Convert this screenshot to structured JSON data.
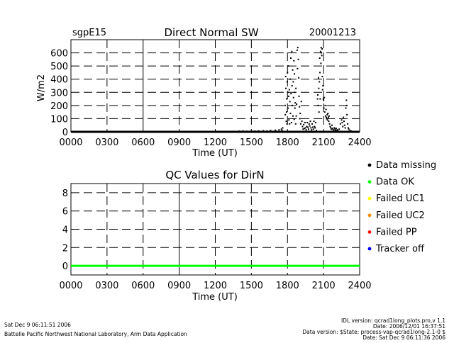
{
  "site": "sgpE15",
  "date": "20001213",
  "footer": {
    "left_line1": "Sat Dec  9 06:11:51 2006",
    "left_line2": "Battelle Pacific Northwest National Laboratory, Arm Data Application",
    "right_line1": "IDL version: qcrad1long_plots.pro,v 1.1",
    "right_line2": "Date: 2006/12/01 16:37:51",
    "right_line3": "Data version: $State: process-vap-qcrad1long-2.1-0 $",
    "right_line4": "Date: Sat Dec  9 06:11:36 2006"
  },
  "legend": [
    {
      "label": "Data missing",
      "color": "#000000"
    },
    {
      "label": "Data OK",
      "color": "#00ff00"
    },
    {
      "label": "Failed UC1",
      "color": "#ffff00"
    },
    {
      "label": "Failed UC2",
      "color": "#ff8c00"
    },
    {
      "label": "Failed PP",
      "color": "#ff0000"
    },
    {
      "label": "Tracker off",
      "color": "#0000ff"
    }
  ],
  "chart_data": [
    {
      "type": "scatter",
      "title": "Direct Normal SW",
      "xlabel": "Time (UT)",
      "ylabel": "W/m2",
      "xlim": [
        0,
        2400
      ],
      "ylim": [
        0,
        700
      ],
      "xticks": [
        "0000",
        "0300",
        "0600",
        "0900",
        "1200",
        "1500",
        "1800",
        "2100",
        "2400"
      ],
      "yticks": [
        "0",
        "100",
        "200",
        "300",
        "400",
        "500",
        "600"
      ],
      "grid": true,
      "baseline": {
        "y": 0,
        "from": 0,
        "to": 2400
      },
      "points": [
        [
          1400,
          5
        ],
        [
          1430,
          6
        ],
        [
          1460,
          4
        ],
        [
          1500,
          7
        ],
        [
          1530,
          5
        ],
        [
          1560,
          6
        ],
        [
          1600,
          8
        ],
        [
          1630,
          6
        ],
        [
          1660,
          10
        ],
        [
          1700,
          12
        ],
        [
          1730,
          15
        ],
        [
          1750,
          20
        ],
        [
          1755,
          10
        ],
        [
          1760,
          30
        ],
        [
          1780,
          200
        ],
        [
          1782,
          130
        ],
        [
          1785,
          420
        ],
        [
          1787,
          330
        ],
        [
          1790,
          80
        ],
        [
          1792,
          150
        ],
        [
          1794,
          250
        ],
        [
          1796,
          60
        ],
        [
          1798,
          380
        ],
        [
          1800,
          450
        ],
        [
          1803,
          300
        ],
        [
          1805,
          180
        ],
        [
          1808,
          500
        ],
        [
          1810,
          270
        ],
        [
          1812,
          90
        ],
        [
          1815,
          320
        ],
        [
          1818,
          60
        ],
        [
          1820,
          230
        ],
        [
          1823,
          400
        ],
        [
          1825,
          140
        ],
        [
          1828,
          560
        ],
        [
          1830,
          290
        ],
        [
          1833,
          70
        ],
        [
          1836,
          610
        ],
        [
          1838,
          350
        ],
        [
          1840,
          200
        ],
        [
          1843,
          470
        ],
        [
          1846,
          120
        ],
        [
          1848,
          380
        ],
        [
          1850,
          260
        ],
        [
          1853,
          540
        ],
        [
          1856,
          95
        ],
        [
          1858,
          440
        ],
        [
          1860,
          300
        ],
        [
          1862,
          180
        ],
        [
          1865,
          220
        ],
        [
          1868,
          60
        ],
        [
          1870,
          330
        ],
        [
          1873,
          120
        ],
        [
          1876,
          210
        ],
        [
          1880,
          620
        ],
        [
          1883,
          480
        ],
        [
          1886,
          640
        ],
        [
          1890,
          550
        ],
        [
          1893,
          410
        ],
        [
          1896,
          270
        ],
        [
          1900,
          190
        ],
        [
          1903,
          100
        ],
        [
          1906,
          140
        ],
        [
          1910,
          60
        ],
        [
          1915,
          230
        ],
        [
          1920,
          80
        ],
        [
          1925,
          40
        ],
        [
          1930,
          20
        ],
        [
          1935,
          55
        ],
        [
          1940,
          25
        ],
        [
          1945,
          70
        ],
        [
          1950,
          30
        ],
        [
          1955,
          15
        ],
        [
          1960,
          40
        ],
        [
          1965,
          70
        ],
        [
          1970,
          35
        ],
        [
          1975,
          20
        ],
        [
          1980,
          60
        ],
        [
          1985,
          45
        ],
        [
          1990,
          80
        ],
        [
          1995,
          30
        ],
        [
          2000,
          15
        ],
        [
          2005,
          60
        ],
        [
          2010,
          35
        ],
        [
          2015,
          20
        ],
        [
          2020,
          80
        ],
        [
          2025,
          40
        ],
        [
          2030,
          30
        ],
        [
          2035,
          70
        ],
        [
          2040,
          10
        ],
        [
          2050,
          250
        ],
        [
          2052,
          280
        ],
        [
          2055,
          200
        ],
        [
          2058,
          410
        ],
        [
          2060,
          330
        ],
        [
          2062,
          150
        ],
        [
          2065,
          380
        ],
        [
          2068,
          560
        ],
        [
          2070,
          450
        ],
        [
          2072,
          250
        ],
        [
          2075,
          610
        ],
        [
          2078,
          520
        ],
        [
          2080,
          640
        ],
        [
          2082,
          600
        ],
        [
          2085,
          580
        ],
        [
          2088,
          630
        ],
        [
          2090,
          420
        ],
        [
          2092,
          320
        ],
        [
          2095,
          350
        ],
        [
          2098,
          250
        ],
        [
          2100,
          240
        ],
        [
          2103,
          180
        ],
        [
          2106,
          260
        ],
        [
          2110,
          150
        ],
        [
          2113,
          200
        ],
        [
          2116,
          120
        ],
        [
          2120,
          170
        ],
        [
          2123,
          110
        ],
        [
          2126,
          100
        ],
        [
          2130,
          130
        ],
        [
          2133,
          90
        ],
        [
          2136,
          140
        ],
        [
          2140,
          110
        ],
        [
          2143,
          80
        ],
        [
          2146,
          120
        ],
        [
          2150,
          60
        ],
        [
          2155,
          40
        ],
        [
          2160,
          30
        ],
        [
          2165,
          20
        ],
        [
          2170,
          50
        ],
        [
          2175,
          25
        ],
        [
          2180,
          15
        ],
        [
          2185,
          10
        ],
        [
          2190,
          30
        ],
        [
          2195,
          20
        ],
        [
          2200,
          10
        ],
        [
          2205,
          25
        ],
        [
          2210,
          8
        ],
        [
          2215,
          15
        ],
        [
          2220,
          5
        ],
        [
          2230,
          20
        ],
        [
          2240,
          60
        ],
        [
          2250,
          90
        ],
        [
          2255,
          70
        ],
        [
          2260,
          40
        ],
        [
          2265,
          110
        ],
        [
          2270,
          80
        ],
        [
          2275,
          50
        ],
        [
          2280,
          30
        ],
        [
          2285,
          180
        ],
        [
          2290,
          240
        ],
        [
          2292,
          200
        ],
        [
          2295,
          130
        ],
        [
          2300,
          60
        ],
        [
          2305,
          30
        ],
        [
          2310,
          20
        ],
        [
          2320,
          10
        ],
        [
          2330,
          5
        ]
      ]
    },
    {
      "type": "line",
      "title": "QC Values for DirN",
      "xlabel": "Time (UT)",
      "ylabel": "",
      "xlim": [
        0,
        2400
      ],
      "ylim": [
        -1,
        9
      ],
      "xticks": [
        "0000",
        "0300",
        "0600",
        "0900",
        "1200",
        "1500",
        "1800",
        "2100",
        "2400"
      ],
      "yticks": [
        "0",
        "2",
        "4",
        "6",
        "8"
      ],
      "grid": true,
      "series": [
        {
          "color": "#00ff00",
          "x": [
            0,
            2400
          ],
          "values": [
            0,
            0
          ]
        }
      ]
    }
  ]
}
